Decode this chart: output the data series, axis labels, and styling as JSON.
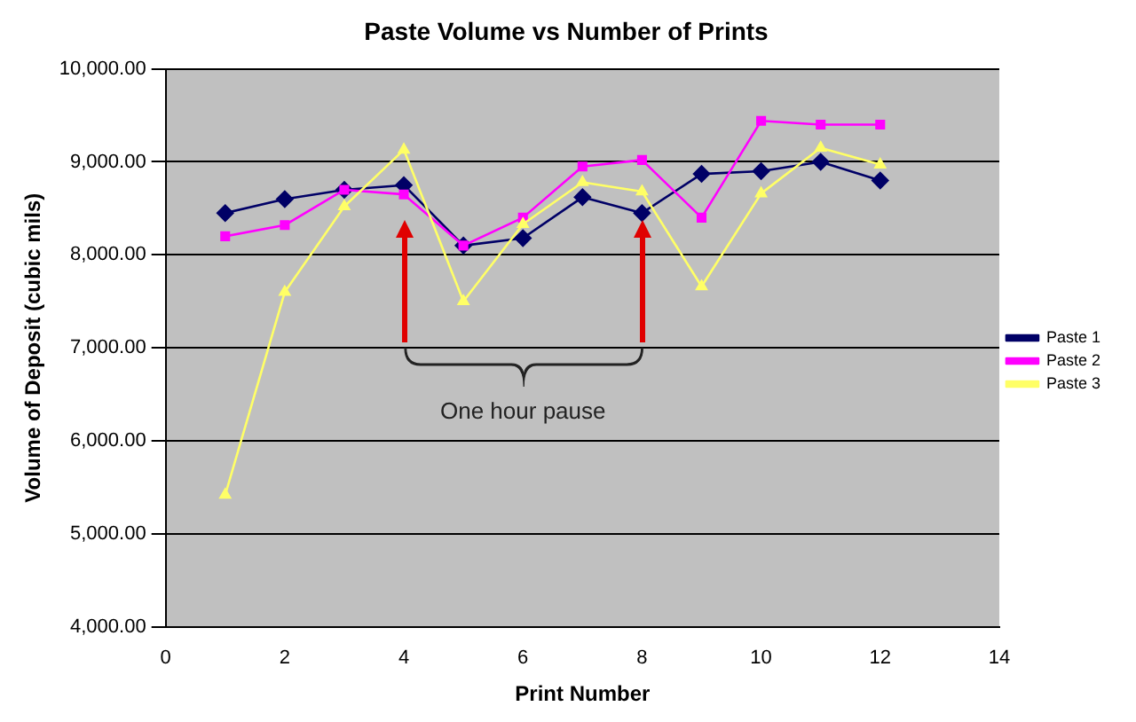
{
  "chart_data": {
    "type": "line",
    "title": "Paste Volume vs Number of Prints",
    "xlabel": "Print Number",
    "ylabel": "Volume of Deposit (cubic mils)",
    "x": [
      1,
      2,
      3,
      4,
      5,
      6,
      7,
      8,
      9,
      10,
      11,
      12
    ],
    "series": [
      {
        "name": "Paste 1",
        "color": "#000066",
        "marker": "diamond",
        "values": [
          8450,
          8600,
          8700,
          8750,
          8100,
          8180,
          8620,
          8450,
          8870,
          8900,
          9000,
          8800
        ]
      },
      {
        "name": "Paste 2",
        "color": "#ff00ff",
        "marker": "square",
        "values": [
          8200,
          8320,
          8700,
          8650,
          8100,
          8400,
          8950,
          9020,
          8400,
          9440,
          9400,
          9400
        ]
      },
      {
        "name": "Paste 3",
        "color": "#ffff66",
        "marker": "triangle",
        "values": [
          5420,
          7600,
          8520,
          9130,
          7500,
          8330,
          8780,
          8680,
          7660,
          8660,
          9150,
          8970
        ]
      }
    ],
    "xlim": [
      0,
      14
    ],
    "xticks": [
      0,
      2,
      4,
      6,
      8,
      10,
      12,
      14
    ],
    "ylim": [
      4000,
      10000
    ],
    "yticks": [
      {
        "value": 4000,
        "label": "4,000.00"
      },
      {
        "value": 5000,
        "label": "5,000.00"
      },
      {
        "value": 6000,
        "label": "6,000.00"
      },
      {
        "value": 7000,
        "label": "7,000.00"
      },
      {
        "value": 8000,
        "label": "8,000.00"
      },
      {
        "value": 9000,
        "label": "9,000.00"
      },
      {
        "value": 10000,
        "label": "10,000.00"
      }
    ],
    "grid": "y",
    "legend": "right",
    "annotations": [
      "One hour pause"
    ]
  }
}
